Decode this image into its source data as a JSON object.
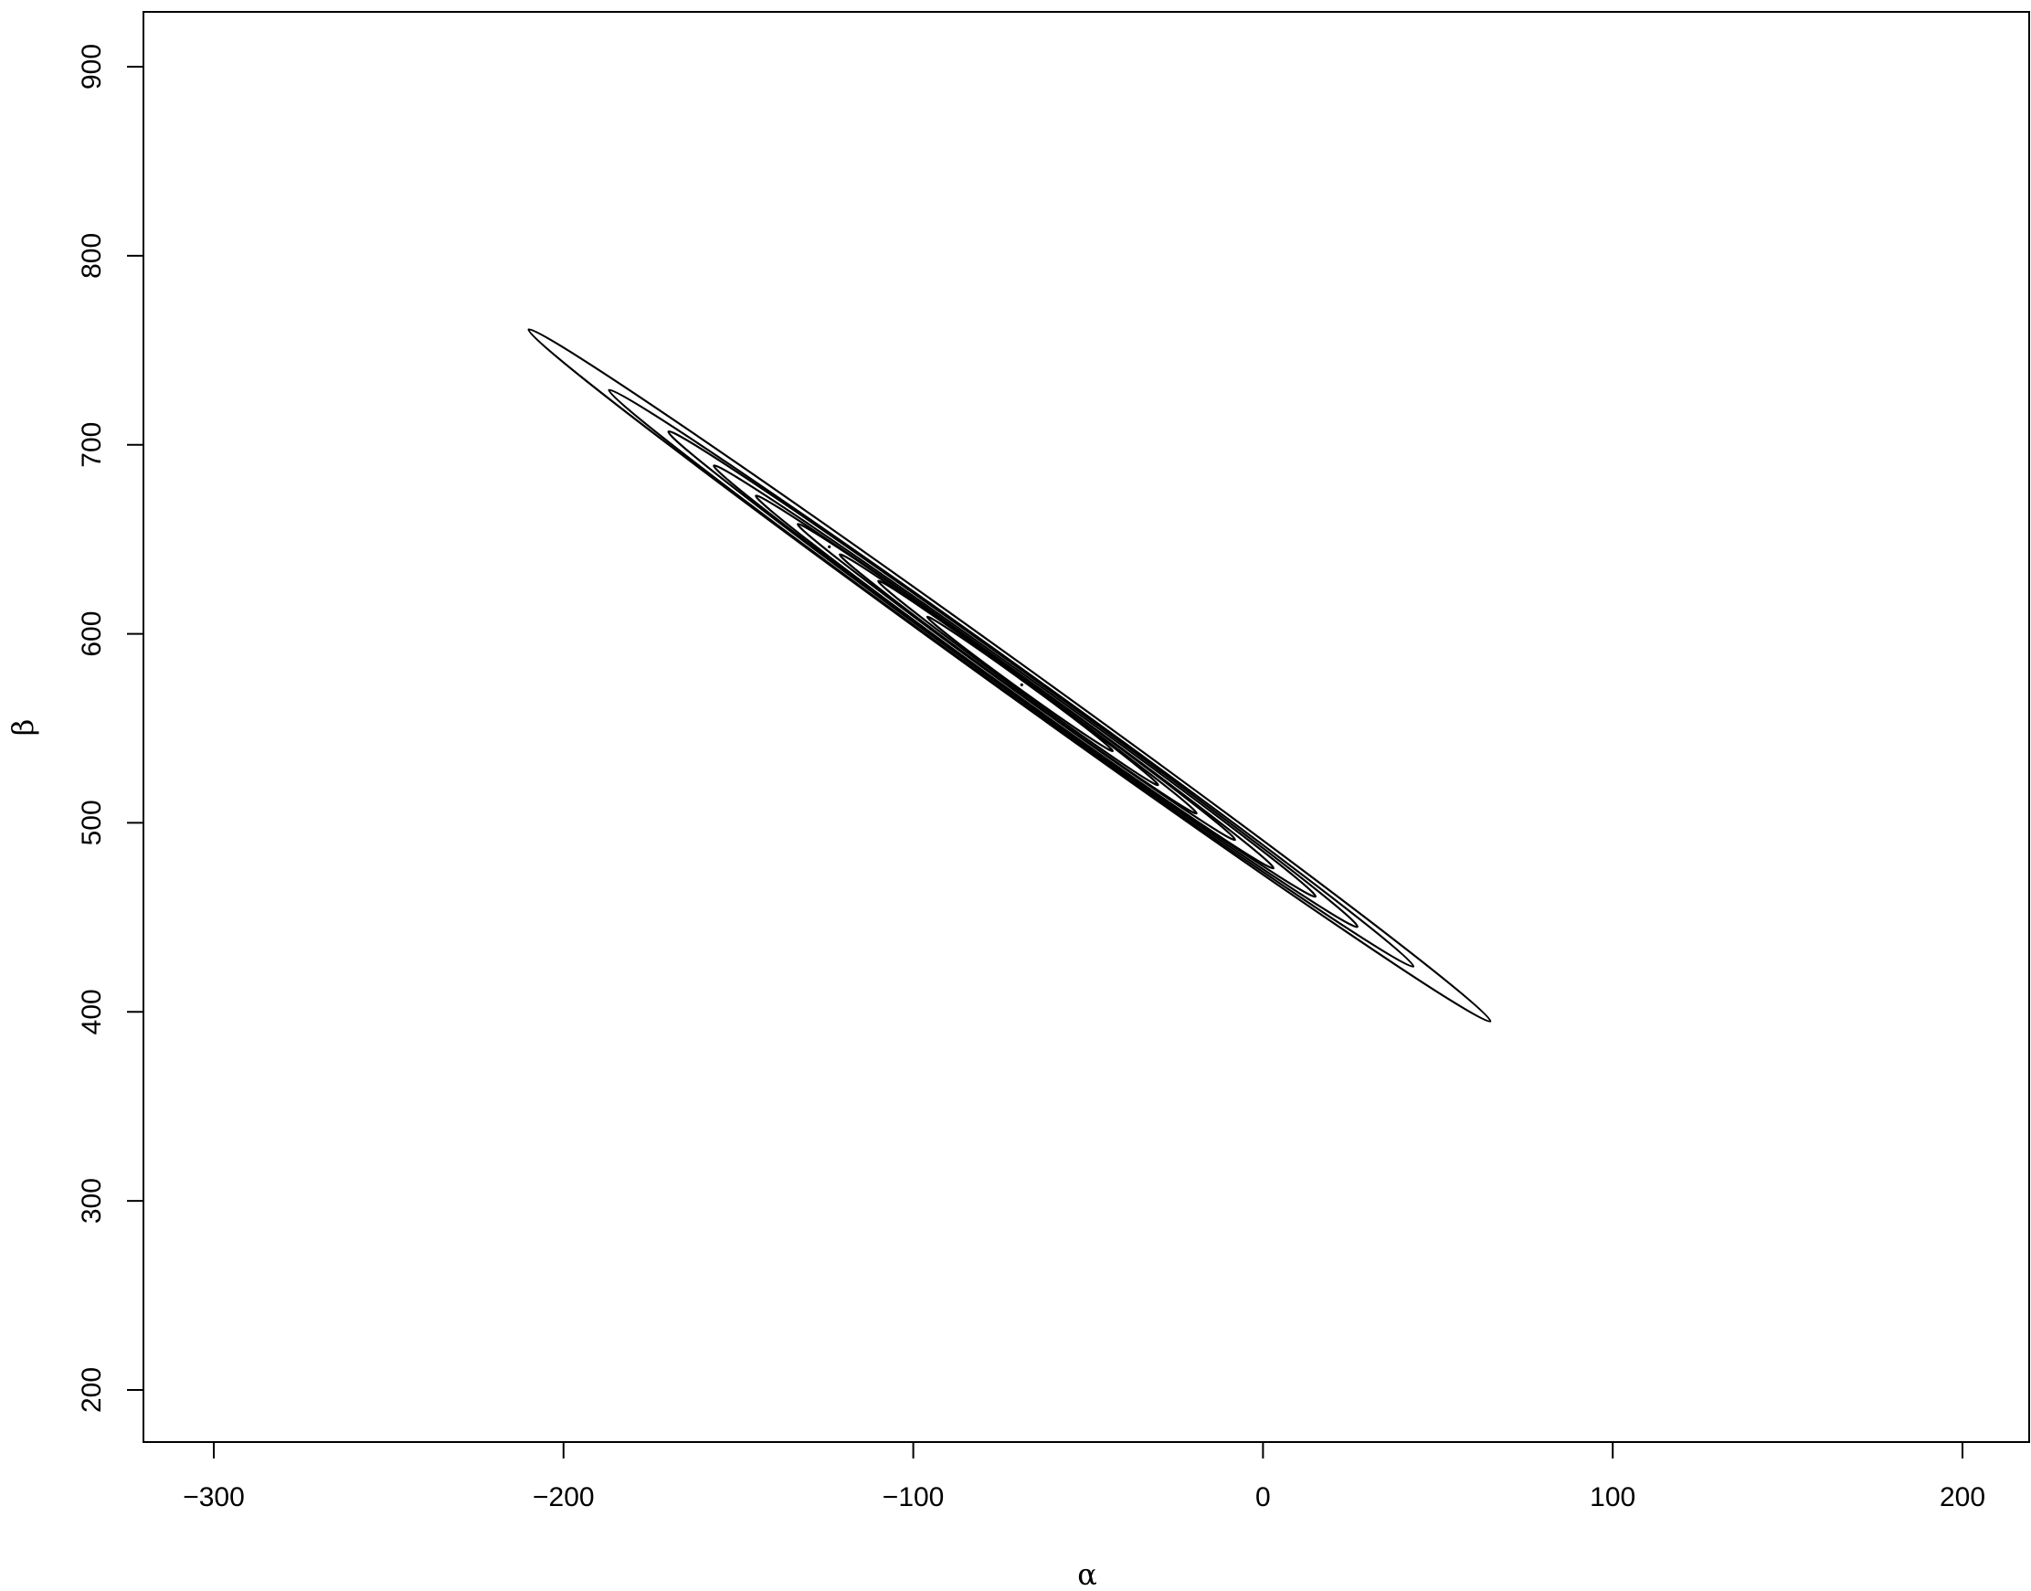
{
  "chart_data": {
    "type": "contour",
    "title": "",
    "xlabel": "α",
    "ylabel": "β",
    "xlim": [
      -320,
      220
    ],
    "ylim": [
      172,
      925
    ],
    "x_ticks": [
      -300,
      -200,
      -100,
      0,
      100,
      200
    ],
    "x_tick_labels": [
      "−300",
      "−200",
      "−100",
      "0",
      "100",
      "200"
    ],
    "y_ticks": [
      200,
      300,
      400,
      500,
      600,
      700,
      800,
      900
    ],
    "y_tick_labels": [
      "200",
      "300",
      "400",
      "500",
      "600",
      "700",
      "800",
      "900"
    ],
    "grid": false,
    "legend": "none",
    "line_color": "#000000",
    "contours": [
      {
        "x1": -210,
        "y1": 761,
        "x2": 65,
        "y2": 395,
        "width": 7.0
      },
      {
        "x1": -187,
        "y1": 729,
        "x2": 43,
        "y2": 424,
        "width": 6.0
      },
      {
        "x1": -170,
        "y1": 707,
        "x2": 27,
        "y2": 445,
        "width": 5.3
      },
      {
        "x1": -157,
        "y1": 689,
        "x2": 15,
        "y2": 461,
        "width": 4.6
      },
      {
        "x1": -145,
        "y1": 673,
        "x2": 3,
        "y2": 476,
        "width": 4.0
      },
      {
        "x1": -133,
        "y1": 658,
        "x2": -8,
        "y2": 491,
        "width": 3.4
      },
      {
        "x1": -121,
        "y1": 642,
        "x2": -19,
        "y2": 505,
        "width": 2.9
      },
      {
        "x1": -110,
        "y1": 628,
        "x2": -30,
        "y2": 520,
        "width": 2.4
      },
      {
        "x1": -96,
        "y1": 609,
        "x2": -43,
        "y2": 538,
        "width": 1.8
      }
    ],
    "peak_points": [
      {
        "x": -124,
        "y": 646
      },
      {
        "x": -69,
        "y": 573
      }
    ]
  }
}
